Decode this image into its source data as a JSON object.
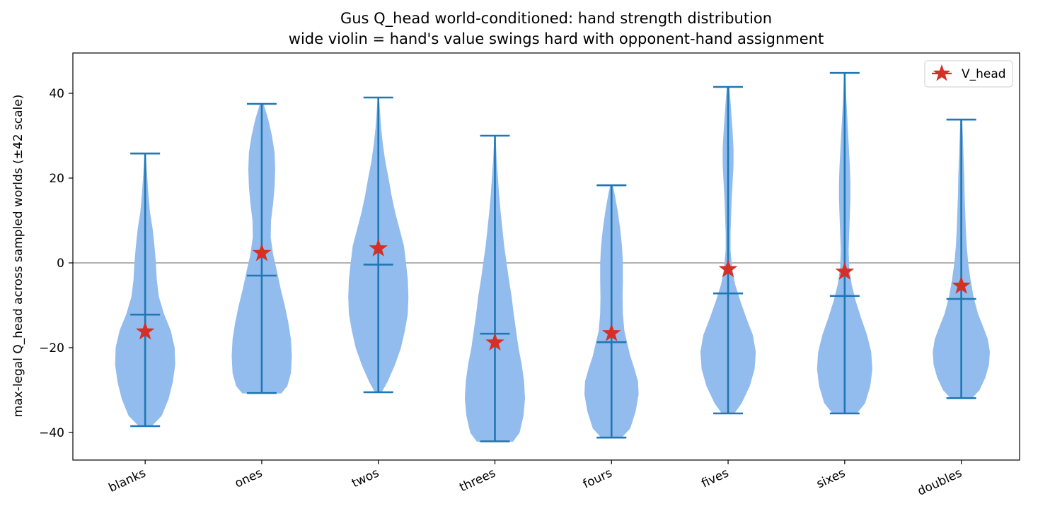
{
  "chart_data": {
    "type": "violin",
    "title": [
      "Gus Q_head world-conditioned: hand strength distribution",
      "wide violin = hand's value swings hard with opponent-hand assignment"
    ],
    "ylabel": "max-legal Q_head across sampled worlds (±42 scale)",
    "xlabel": "",
    "ylim": [
      -46.5,
      49.5
    ],
    "yticks": [
      -40,
      -20,
      0,
      20,
      40
    ],
    "reference_line_y": 0,
    "grid": false,
    "legend": {
      "position": "top-right",
      "entries": [
        {
          "label": "V_head",
          "marker": "star",
          "color": "#d62f26"
        }
      ]
    },
    "colors": {
      "violin_fill": "#92bced",
      "violin_lines": "#1f77b4",
      "star": "#d62f26",
      "zero_line": "#999999"
    },
    "categories": [
      "blanks",
      "ones",
      "twos",
      "threes",
      "fours",
      "fives",
      "sixes",
      "doubles"
    ],
    "series": [
      {
        "category": "blanks",
        "min": -38.5,
        "max": 25.8,
        "median": -12.2,
        "v_head": -16.2,
        "density": [
          [
            -38.5,
            0.2
          ],
          [
            -36,
            0.55
          ],
          [
            -32,
            0.78
          ],
          [
            -28,
            0.92
          ],
          [
            -24,
            1.0
          ],
          [
            -20,
            0.98
          ],
          [
            -16,
            0.85
          ],
          [
            -12,
            0.62
          ],
          [
            -8,
            0.45
          ],
          [
            -4,
            0.38
          ],
          [
            0,
            0.35
          ],
          [
            4,
            0.3
          ],
          [
            8,
            0.24
          ],
          [
            12,
            0.15
          ],
          [
            16,
            0.1
          ],
          [
            20,
            0.06
          ],
          [
            25.8,
            0.01
          ]
        ]
      },
      {
        "category": "ones",
        "min": -30.7,
        "max": 37.5,
        "median": -3.0,
        "v_head": 2.3,
        "density": [
          [
            -30.7,
            0.65
          ],
          [
            -29,
            0.85
          ],
          [
            -26,
            0.97
          ],
          [
            -22,
            1.0
          ],
          [
            -18,
            0.97
          ],
          [
            -14,
            0.88
          ],
          [
            -10,
            0.76
          ],
          [
            -6,
            0.62
          ],
          [
            -2,
            0.5
          ],
          [
            2,
            0.37
          ],
          [
            6,
            0.29
          ],
          [
            10,
            0.3
          ],
          [
            14,
            0.37
          ],
          [
            18,
            0.42
          ],
          [
            22,
            0.44
          ],
          [
            26,
            0.42
          ],
          [
            30,
            0.33
          ],
          [
            34,
            0.2
          ],
          [
            37.5,
            0.05
          ]
        ]
      },
      {
        "category": "twos",
        "min": -30.5,
        "max": 39.0,
        "median": -0.4,
        "v_head": 3.4,
        "density": [
          [
            -30.5,
            0.1
          ],
          [
            -28,
            0.3
          ],
          [
            -24,
            0.55
          ],
          [
            -20,
            0.75
          ],
          [
            -16,
            0.88
          ],
          [
            -12,
            0.98
          ],
          [
            -8,
            1.0
          ],
          [
            -4,
            0.98
          ],
          [
            0,
            0.92
          ],
          [
            4,
            0.85
          ],
          [
            8,
            0.7
          ],
          [
            12,
            0.55
          ],
          [
            16,
            0.43
          ],
          [
            20,
            0.33
          ],
          [
            24,
            0.22
          ],
          [
            28,
            0.14
          ],
          [
            32,
            0.08
          ],
          [
            36,
            0.04
          ],
          [
            39,
            0.01
          ]
        ]
      },
      {
        "category": "threes",
        "min": -42.1,
        "max": 30.0,
        "median": -16.7,
        "v_head": -18.8,
        "density": [
          [
            -42.1,
            0.6
          ],
          [
            -40,
            0.82
          ],
          [
            -36,
            0.95
          ],
          [
            -32,
            1.0
          ],
          [
            -28,
            0.97
          ],
          [
            -24,
            0.89
          ],
          [
            -20,
            0.78
          ],
          [
            -16,
            0.7
          ],
          [
            -12,
            0.62
          ],
          [
            -8,
            0.55
          ],
          [
            -4,
            0.46
          ],
          [
            0,
            0.38
          ],
          [
            4,
            0.3
          ],
          [
            8,
            0.24
          ],
          [
            12,
            0.18
          ],
          [
            16,
            0.13
          ],
          [
            20,
            0.09
          ],
          [
            24,
            0.05
          ],
          [
            30,
            0.01
          ]
        ]
      },
      {
        "category": "fours",
        "min": -41.2,
        "max": 18.3,
        "median": -18.7,
        "v_head": -16.6,
        "density": [
          [
            -41.2,
            0.33
          ],
          [
            -39,
            0.62
          ],
          [
            -35,
            0.8
          ],
          [
            -31,
            0.9
          ],
          [
            -28,
            0.88
          ],
          [
            -25,
            0.76
          ],
          [
            -22,
            0.62
          ],
          [
            -19,
            0.52
          ],
          [
            -16,
            0.42
          ],
          [
            -12,
            0.37
          ],
          [
            -8,
            0.36
          ],
          [
            -4,
            0.37
          ],
          [
            0,
            0.37
          ],
          [
            4,
            0.34
          ],
          [
            8,
            0.28
          ],
          [
            12,
            0.2
          ],
          [
            16,
            0.1
          ],
          [
            18.3,
            0.03
          ]
        ]
      },
      {
        "category": "fives",
        "min": -35.5,
        "max": 41.5,
        "median": -7.2,
        "v_head": -1.5,
        "density": [
          [
            -35.5,
            0.2
          ],
          [
            -33,
            0.45
          ],
          [
            -29,
            0.72
          ],
          [
            -25,
            0.88
          ],
          [
            -21,
            0.92
          ],
          [
            -17,
            0.82
          ],
          [
            -13,
            0.6
          ],
          [
            -9,
            0.4
          ],
          [
            -5,
            0.22
          ],
          [
            -1,
            0.12
          ],
          [
            3,
            0.07
          ],
          [
            7,
            0.07
          ],
          [
            11,
            0.09
          ],
          [
            15,
            0.11
          ],
          [
            19,
            0.14
          ],
          [
            23,
            0.17
          ],
          [
            27,
            0.17
          ],
          [
            31,
            0.14
          ],
          [
            35,
            0.1
          ],
          [
            39,
            0.06
          ],
          [
            41.5,
            0.03
          ]
        ]
      },
      {
        "category": "sixes",
        "min": -35.5,
        "max": 44.8,
        "median": -7.8,
        "v_head": -2.1,
        "density": [
          [
            -35.5,
            0.4
          ],
          [
            -33,
            0.68
          ],
          [
            -29,
            0.85
          ],
          [
            -25,
            0.92
          ],
          [
            -21,
            0.88
          ],
          [
            -17,
            0.74
          ],
          [
            -13,
            0.54
          ],
          [
            -9,
            0.36
          ],
          [
            -5,
            0.22
          ],
          [
            -1,
            0.14
          ],
          [
            3,
            0.12
          ],
          [
            7,
            0.14
          ],
          [
            11,
            0.16
          ],
          [
            15,
            0.18
          ],
          [
            19,
            0.18
          ],
          [
            23,
            0.16
          ],
          [
            27,
            0.13
          ],
          [
            31,
            0.1
          ],
          [
            35,
            0.07
          ],
          [
            39,
            0.04
          ],
          [
            44.8,
            0.01
          ]
        ]
      },
      {
        "category": "doubles",
        "min": -31.9,
        "max": 33.8,
        "median": -8.5,
        "v_head": -5.4,
        "density": [
          [
            -31.9,
            0.35
          ],
          [
            -30,
            0.6
          ],
          [
            -27,
            0.8
          ],
          [
            -24,
            0.92
          ],
          [
            -21,
            0.95
          ],
          [
            -18,
            0.88
          ],
          [
            -15,
            0.72
          ],
          [
            -12,
            0.55
          ],
          [
            -8,
            0.4
          ],
          [
            -4,
            0.3
          ],
          [
            0,
            0.22
          ],
          [
            4,
            0.17
          ],
          [
            8,
            0.14
          ],
          [
            12,
            0.12
          ],
          [
            16,
            0.1
          ],
          [
            20,
            0.09
          ],
          [
            24,
            0.07
          ],
          [
            28,
            0.05
          ],
          [
            33.8,
            0.02
          ]
        ]
      }
    ]
  }
}
